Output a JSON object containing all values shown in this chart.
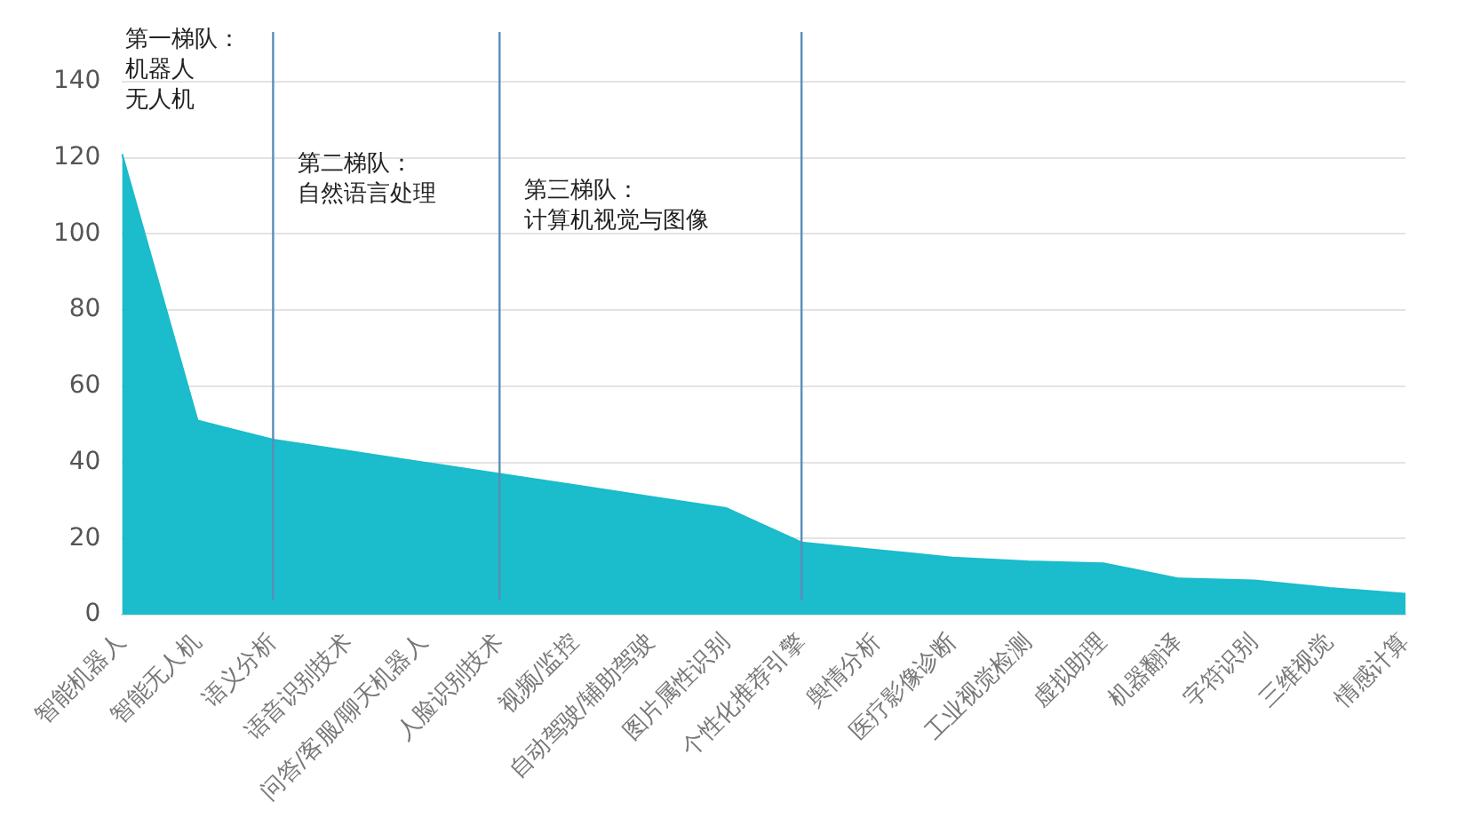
{
  "chart_data": {
    "type": "area",
    "categories": [
      "智能机器人",
      "智能无人机",
      "语义分析",
      "语音识别技术",
      "问答/客服/聊天机器人",
      "人脸识别技术",
      "视频/监控",
      "自动驾驶/辅助驾驶",
      "图片属性识别",
      "个性化推荐引擎",
      "舆情分析",
      "医疗影像诊断",
      "工业视觉检测",
      "虚拟助理",
      "机器翻译",
      "字符识别",
      "三维视觉",
      "情感计算"
    ],
    "series": [
      {
        "color": "#1bbccb",
        "values": [
          121,
          51,
          46,
          43,
          40,
          37,
          34,
          31,
          28,
          19,
          17,
          15,
          14,
          13.5,
          9.5,
          9,
          7,
          5.5
        ]
      }
    ],
    "ylim": [
      0,
      140
    ],
    "yticks": [
      0,
      20,
      40,
      60,
      80,
      100,
      120,
      140
    ],
    "grid": "y",
    "ref_lines": [
      {
        "axis": "x",
        "value": "语义分析",
        "color": "#5b8db8"
      },
      {
        "axis": "x",
        "value": "人脸识别技术",
        "color": "#5b8db8"
      },
      {
        "axis": "x",
        "value": "个性化推荐引擎",
        "color": "#5b8db8"
      }
    ],
    "annotations": [
      "第一梯队：",
      "机器人",
      "无人机",
      "第二梯队：",
      "自然语言处理",
      "第三梯队：",
      "计算机视觉与图像"
    ]
  }
}
